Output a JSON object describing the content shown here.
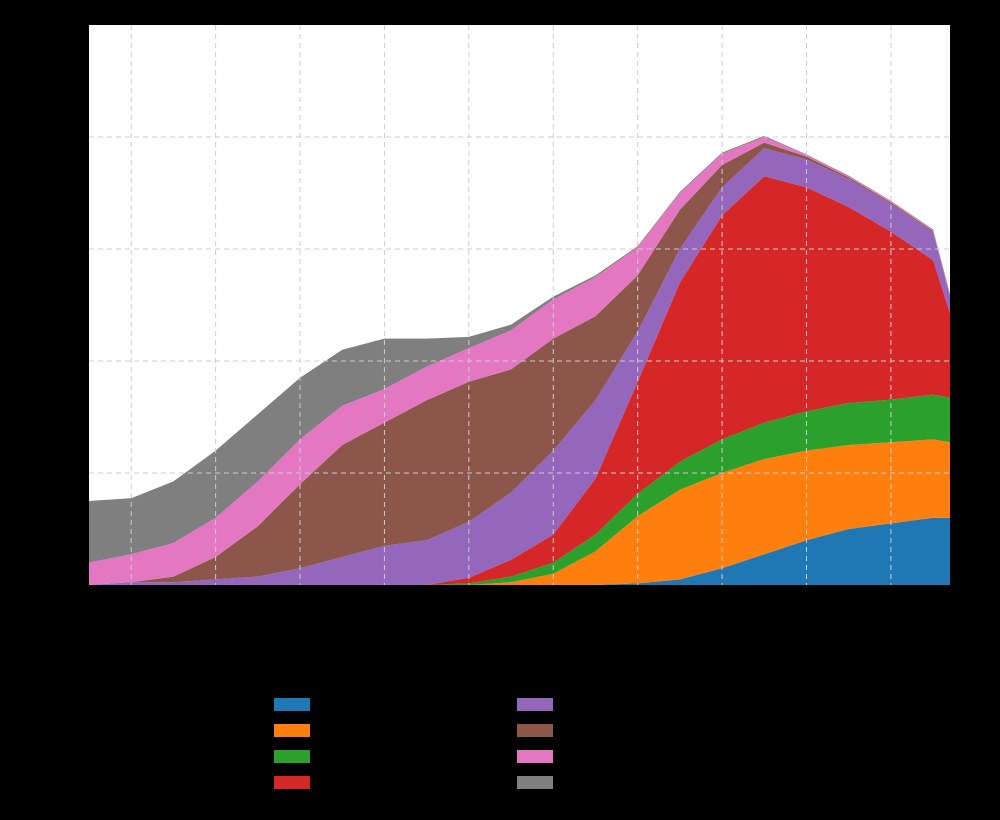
{
  "chart_data": {
    "type": "area",
    "stacked": true,
    "title": "",
    "xlabel": "",
    "ylabel": "",
    "x_tick_labels": [],
    "y_tick_labels": [],
    "grid": true,
    "legend_position": "bottom-center",
    "xlim": [
      0,
      102
    ],
    "ylim": [
      0,
      100
    ],
    "x_ticks": [
      5,
      15,
      25,
      35,
      45,
      55,
      65,
      75,
      85,
      95
    ],
    "y_ticks": [
      20,
      40,
      60,
      80
    ],
    "x": [
      0,
      5,
      10,
      15,
      20,
      25,
      30,
      35,
      40,
      45,
      50,
      55,
      60,
      65,
      70,
      75,
      80,
      85,
      90,
      95,
      100,
      102
    ],
    "series": [
      {
        "name": "",
        "color": "#1f77b4",
        "values": [
          0,
          0,
          0,
          0,
          0,
          0,
          0,
          0,
          0,
          0,
          0,
          0,
          0,
          0.3,
          1,
          3,
          5.5,
          8,
          10,
          11,
          12,
          12
        ]
      },
      {
        "name": "",
        "color": "#ff7f0e",
        "values": [
          0,
          0,
          0,
          0,
          0,
          0,
          0,
          0,
          0,
          0,
          0.5,
          2,
          6,
          12,
          16,
          17,
          17,
          16,
          15,
          14.5,
          14,
          13.5
        ]
      },
      {
        "name": "",
        "color": "#2ca02c",
        "values": [
          0,
          0,
          0,
          0,
          0,
          0,
          0,
          0,
          0,
          0.3,
          1,
          2,
          3,
          4,
          5,
          6,
          6.5,
          7,
          7.5,
          7.6,
          8,
          8
        ]
      },
      {
        "name": "",
        "color": "#d62728",
        "values": [
          0,
          0,
          0,
          0,
          0,
          0,
          0,
          0,
          0,
          1,
          3,
          5,
          10,
          20,
          32,
          40,
          44,
          40,
          35,
          30,
          24,
          15
        ]
      },
      {
        "name": "",
        "color": "#9467bd",
        "values": [
          0,
          0.5,
          0.5,
          1,
          1.5,
          3,
          5,
          7,
          8,
          10,
          12,
          15,
          14,
          9,
          6,
          5,
          5,
          5,
          5,
          5,
          5,
          3
        ]
      },
      {
        "name": "",
        "color": "#8c564b",
        "values": [
          0,
          0,
          1,
          4,
          9,
          15,
          20,
          22,
          25,
          25,
          22,
          20,
          15,
          10,
          7,
          4,
          1,
          0.5,
          0.3,
          0.2,
          0.2,
          0.2
        ]
      },
      {
        "name": "",
        "color": "#e377c2",
        "values": [
          4,
          5,
          6,
          7,
          8,
          8,
          7,
          6,
          6,
          6,
          7,
          7,
          7,
          5,
          3,
          2,
          1,
          0.3,
          0.2,
          0.2,
          0.2,
          0.2
        ]
      },
      {
        "name": "",
        "color": "#7f7f7f",
        "values": [
          11,
          10,
          11,
          12,
          12,
          11,
          10,
          9,
          5,
          2,
          1,
          0.5,
          0.3,
          0.2,
          0.2,
          0.2,
          0.2,
          0.1,
          0.1,
          0.1,
          0.1,
          0.1
        ]
      }
    ]
  }
}
